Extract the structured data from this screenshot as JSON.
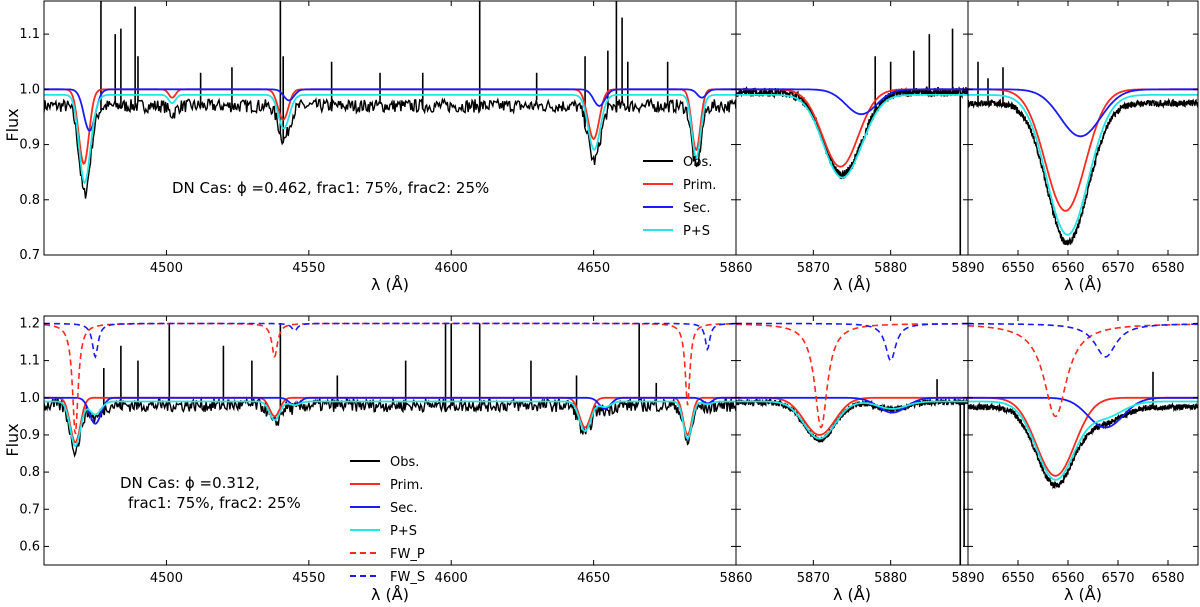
{
  "figure": {
    "ylabel": "Flux",
    "xlabel": "λ (Å)"
  },
  "legend_entries": [
    {
      "label": "Obs.",
      "color": "#000000",
      "dash": false
    },
    {
      "label": "Prim.",
      "color": "#ff2a1f",
      "dash": false
    },
    {
      "label": "Sec.",
      "color": "#1a1aff",
      "dash": false
    },
    {
      "label": "P+S",
      "color": "#22e6e6",
      "dash": false
    },
    {
      "label": "FW_P",
      "color": "#ff2a1f",
      "dash": true
    },
    {
      "label": "FW_S",
      "color": "#1a1aff",
      "dash": true
    }
  ],
  "chart_data": [
    {
      "type": "line",
      "row": "top",
      "annotation": [
        "DN Cas: ϕ =0.462, frac1: 75%, frac2: 25%"
      ],
      "ylabel": "Flux",
      "ylim": [
        0.7,
        1.16
      ],
      "yticks": [
        0.7,
        0.8,
        0.9,
        1.0,
        1.1
      ],
      "ytick_labels": [
        "0.7",
        "0.8",
        "0.9",
        "1.0",
        "1.1"
      ],
      "legend_count": 4,
      "panels": [
        {
          "xlabel": "λ (Å)",
          "xlim": [
            4457,
            4700
          ],
          "xticks": [
            4500,
            4550,
            4600,
            4650
          ],
          "xtick_labels": [
            "4500",
            "4550",
            "4600",
            "4650"
          ],
          "lines": [
            {
              "name": "Prim.",
              "center": 4471,
              "depth": 0.135,
              "width": 1.8
            },
            {
              "name": "Prim.",
              "center": 4541,
              "depth": 0.055,
              "width": 1.8
            },
            {
              "name": "Prim.",
              "center": 4650,
              "depth": 0.09,
              "width": 2.0
            },
            {
              "name": "Prim.",
              "center": 4686,
              "depth": 0.11,
              "width": 1.5
            },
            {
              "name": "Prim.",
              "center": 4502,
              "depth": 0.015,
              "width": 1.2
            },
            {
              "name": "Sec.",
              "center": 4473,
              "depth": 0.075,
              "width": 2.0
            },
            {
              "name": "Sec.",
              "center": 4543,
              "depth": 0.02,
              "width": 1.8
            },
            {
              "name": "Sec.",
              "center": 4652,
              "depth": 0.03,
              "width": 2.0
            },
            {
              "name": "Sec.",
              "center": 4688,
              "depth": 0.015,
              "width": 1.6
            }
          ],
          "obs_spikes": [
            {
              "x": 4477,
              "top": 1.16
            },
            {
              "x": 4482,
              "top": 1.1
            },
            {
              "x": 4484,
              "top": 1.11
            },
            {
              "x": 4489,
              "top": 1.15
            },
            {
              "x": 4490,
              "top": 1.06
            },
            {
              "x": 4512,
              "top": 1.03
            },
            {
              "x": 4523,
              "top": 1.04
            },
            {
              "x": 4540,
              "top": 1.16
            },
            {
              "x": 4541,
              "top": 1.06
            },
            {
              "x": 4558,
              "top": 1.05
            },
            {
              "x": 4575,
              "top": 1.03
            },
            {
              "x": 4590,
              "top": 1.03
            },
            {
              "x": 4610,
              "top": 1.16
            },
            {
              "x": 4630,
              "top": 1.03
            },
            {
              "x": 4647,
              "top": 1.06
            },
            {
              "x": 4655,
              "top": 1.07
            },
            {
              "x": 4658,
              "top": 1.16
            },
            {
              "x": 4660,
              "top": 1.13
            },
            {
              "x": 4662,
              "top": 1.05
            },
            {
              "x": 4676,
              "top": 1.05
            }
          ],
          "obs_offset": -0.02,
          "obs_noise": 0.012
        },
        {
          "xlabel": "λ (Å)",
          "xlim": [
            5860,
            5890
          ],
          "xticks": [
            5860,
            5870,
            5880,
            5890
          ],
          "xtick_labels": [
            "5860",
            "5870",
            "5880",
            "5890"
          ],
          "lines": [
            {
              "name": "Prim.",
              "center": 5873.5,
              "depth": 0.14,
              "width": 2.3
            },
            {
              "name": "Sec.",
              "center": 5876.2,
              "depth": 0.045,
              "width": 2.0
            }
          ],
          "obs_spikes": [
            {
              "x": 5878,
              "top": 1.06
            },
            {
              "x": 5880,
              "top": 1.05
            },
            {
              "x": 5883,
              "top": 1.07
            },
            {
              "x": 5885,
              "top": 1.1
            },
            {
              "x": 5888,
              "top": 1.11
            },
            {
              "x": 5889,
              "top": 0.7
            }
          ],
          "obs_offset": 0.005,
          "obs_noise": 0.008
        },
        {
          "xlabel": "λ (Å)",
          "xlim": [
            6540,
            6586
          ],
          "xticks": [
            6550,
            6560,
            6570,
            6580
          ],
          "xtick_labels": [
            "6550",
            "6560",
            "6570",
            "6580"
          ],
          "lines": [
            {
              "name": "Prim.",
              "center": 6559.5,
              "depth": 0.22,
              "width": 4.0
            },
            {
              "name": "Sec.",
              "center": 6562.5,
              "depth": 0.085,
              "width": 4.0
            }
          ],
          "obs_spikes": [
            {
              "x": 6542,
              "top": 1.05
            },
            {
              "x": 6544,
              "top": 1.02
            },
            {
              "x": 6547,
              "top": 1.04
            }
          ],
          "obs_offset": -0.015,
          "obs_noise": 0.006
        }
      ]
    },
    {
      "type": "line",
      "row": "bottom",
      "annotation": [
        "DN Cas: ϕ =0.312,",
        "frac1: 75%, frac2: 25%"
      ],
      "ylabel": "Flux",
      "ylim": [
        0.55,
        1.22
      ],
      "yticks": [
        0.6,
        0.7,
        0.8,
        0.9,
        1.0,
        1.1,
        1.2
      ],
      "ytick_labels": [
        "0.6",
        "0.7",
        "0.8",
        "0.9",
        "1.0",
        "1.1",
        "1.2"
      ],
      "legend_count": 6,
      "panels": [
        {
          "xlabel": "λ (Å)",
          "xlim": [
            4457,
            4700
          ],
          "xticks": [
            4500,
            4550,
            4600,
            4650
          ],
          "xtick_labels": [
            "4500",
            "4550",
            "4600",
            "4650"
          ],
          "lines": [
            {
              "name": "Prim.",
              "center": 4468,
              "depth": 0.12,
              "width": 1.8
            },
            {
              "name": "Prim.",
              "center": 4538,
              "depth": 0.05,
              "width": 1.8
            },
            {
              "name": "Prim.",
              "center": 4647,
              "depth": 0.08,
              "width": 2.0
            },
            {
              "name": "Prim.",
              "center": 4683,
              "depth": 0.1,
              "width": 1.5
            },
            {
              "name": "Sec.",
              "center": 4475,
              "depth": 0.07,
              "width": 2.0
            },
            {
              "name": "Sec.",
              "center": 4545,
              "depth": 0.02,
              "width": 1.8
            },
            {
              "name": "Sec.",
              "center": 4654,
              "depth": 0.03,
              "width": 2.0
            },
            {
              "name": "Sec.",
              "center": 4690,
              "depth": 0.015,
              "width": 1.6
            },
            {
              "name": "FW_P",
              "center": 4468,
              "depth": 0.3,
              "width": 1.2
            },
            {
              "name": "FW_P",
              "center": 4538,
              "depth": 0.09,
              "width": 1.2
            },
            {
              "name": "FW_P",
              "center": 4683,
              "depth": 0.22,
              "width": 1.0
            },
            {
              "name": "FW_S",
              "center": 4475,
              "depth": 0.09,
              "width": 1.2
            },
            {
              "name": "FW_S",
              "center": 4545,
              "depth": 0.02,
              "width": 1.2
            },
            {
              "name": "FW_S",
              "center": 4690,
              "depth": 0.07,
              "width": 1.0
            }
          ],
          "fw_baseline": 1.2,
          "obs_spikes": [
            {
              "x": 4478,
              "top": 1.08
            },
            {
              "x": 4484,
              "top": 1.14
            },
            {
              "x": 4490,
              "top": 1.1
            },
            {
              "x": 4501,
              "top": 1.2
            },
            {
              "x": 4520,
              "top": 1.14
            },
            {
              "x": 4530,
              "top": 1.1
            },
            {
              "x": 4540,
              "top": 1.2
            },
            {
              "x": 4560,
              "top": 1.06
            },
            {
              "x": 4584,
              "top": 1.1
            },
            {
              "x": 4598,
              "top": 1.2
            },
            {
              "x": 4600,
              "top": 1.2
            },
            {
              "x": 4610,
              "top": 1.2
            },
            {
              "x": 4628,
              "top": 1.1
            },
            {
              "x": 4644,
              "top": 1.06
            },
            {
              "x": 4666,
              "top": 1.2
            },
            {
              "x": 4672,
              "top": 1.04
            }
          ],
          "obs_offset": -0.01,
          "obs_noise": 0.018
        },
        {
          "xlabel": "λ (Å)",
          "xlim": [
            5860,
            5890
          ],
          "xticks": [
            5860,
            5870,
            5880,
            5890
          ],
          "xtick_labels": [
            "5860",
            "5870",
            "5880",
            "5890"
          ],
          "lines": [
            {
              "name": "Prim.",
              "center": 5870.8,
              "depth": 0.1,
              "width": 2.0
            },
            {
              "name": "Sec.",
              "center": 5880.2,
              "depth": 0.04,
              "width": 1.8
            },
            {
              "name": "FW_P",
              "center": 5871.0,
              "depth": 0.28,
              "width": 1.0
            },
            {
              "name": "FW_S",
              "center": 5880.0,
              "depth": 0.1,
              "width": 0.8
            }
          ],
          "fw_baseline": 1.2,
          "obs_spikes": [
            {
              "x": 5886,
              "top": 1.05
            },
            {
              "x": 5889,
              "top": 0.55
            },
            {
              "x": 5889.5,
              "top": 0.6
            }
          ],
          "obs_offset": -0.002,
          "obs_noise": 0.008
        },
        {
          "xlabel": "λ (Å)",
          "xlim": [
            6540,
            6586
          ],
          "xticks": [
            6550,
            6560,
            6570,
            6580
          ],
          "xtick_labels": [
            "6550",
            "6560",
            "6570",
            "6580"
          ],
          "lines": [
            {
              "name": "Prim.",
              "center": 6557.5,
              "depth": 0.21,
              "width": 3.8
            },
            {
              "name": "Sec.",
              "center": 6567.5,
              "depth": 0.08,
              "width": 3.5
            },
            {
              "name": "FW_P",
              "center": 6557.5,
              "depth": 0.25,
              "width": 2.8
            },
            {
              "name": "FW_S",
              "center": 6567.5,
              "depth": 0.09,
              "width": 2.6
            }
          ],
          "fw_baseline": 1.2,
          "obs_spikes": [
            {
              "x": 6577,
              "top": 1.07
            }
          ],
          "obs_offset": -0.015,
          "obs_noise": 0.008
        }
      ]
    }
  ]
}
